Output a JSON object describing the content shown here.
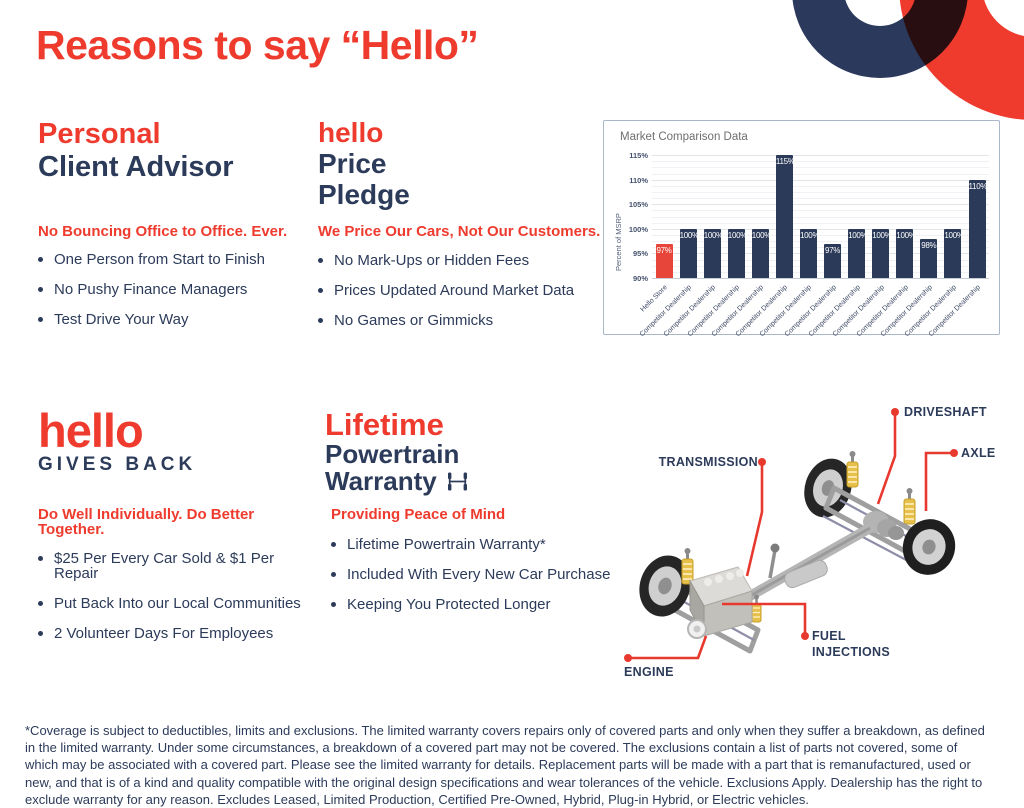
{
  "page": {
    "title": "Reasons to say “Hello”"
  },
  "colors": {
    "red": "#ee3b2e",
    "navy": "#2c3b5a",
    "chart_border": "#a9b7c9",
    "chart_title_gray": "#6f6f6f"
  },
  "sections": {
    "advisor": {
      "heading_line1": "Personal",
      "heading_line2": "Client Advisor",
      "subhead": "No Bouncing Office to Office. Ever.",
      "bullets": [
        "One Person from Start to Finish",
        "No Pushy Finance Managers",
        "Test Drive Your Way"
      ]
    },
    "price": {
      "heading_line1": "hello",
      "heading_line2": "Price",
      "heading_line3": "Pledge",
      "subhead": "We Price Our Cars, Not Our Customers.",
      "bullets": [
        "No Mark-Ups or Hidden Fees",
        "Prices Updated Around Market Data",
        "No Games or Gimmicks"
      ]
    },
    "gives_back": {
      "logo": "hello",
      "heading": "GIVES BACK",
      "subhead": "Do Well Individually. Do Better Together.",
      "bullets": [
        "$25 Per Every Car Sold & $1 Per Repair",
        "Put Back Into our Local Communities",
        "2 Volunteer Days For Employees"
      ]
    },
    "warranty": {
      "heading_line1": "Lifetime",
      "heading_line2": "Powertrain",
      "heading_line3": "Warranty",
      "subhead": "Providing Peace of Mind",
      "bullets": [
        "Lifetime Powertrain Warranty*",
        "Included With Every New Car Purchase",
        "Keeping You Protected Longer"
      ]
    }
  },
  "chart_data": {
    "type": "bar",
    "title": "Market Comparison Data",
    "ylabel": "Percent of MSRP",
    "xlabel": "",
    "categories": [
      "Hello Store",
      "Competitor Dealership",
      "Competitor Dealership",
      "Competitor Dealership",
      "Competitor Dealership",
      "Competitor Dealership",
      "Competitor Dealership",
      "Competitor Dealership",
      "Competitor Dealership",
      "Competitor Dealership",
      "Competitor Dealership",
      "Competitor Dealership",
      "Competitor Dealership",
      "Competitor Dealership"
    ],
    "values": [
      97,
      100,
      100,
      100,
      100,
      115,
      100,
      97,
      100,
      100,
      100,
      98,
      100,
      110
    ],
    "bar_labels": [
      "97%",
      "100%",
      "100%",
      "100%",
      "100%",
      "115%",
      "100%",
      "97%",
      "100%",
      "100%",
      "100%",
      "98%",
      "100%",
      "110%"
    ],
    "ylim": [
      90,
      115
    ],
    "yticks": [
      90,
      95,
      100,
      105,
      110,
      115
    ],
    "ytick_labels": [
      "90%",
      "95%",
      "100%",
      "105%",
      "110%",
      "115%"
    ],
    "grid": true,
    "legend": "none",
    "highlight_index": 0,
    "highlight_color": "#e8453a",
    "bar_color": "#2b3a58"
  },
  "diagram": {
    "transmission": "TRANSMISSION",
    "driveshaft": "DRIVESHAFT",
    "axle": "AXLE",
    "fuel_line1": "FUEL",
    "fuel_line2": "INJECTIONS",
    "engine": "ENGINE"
  },
  "footer": {
    "disclaimer": "*Coverage is subject to deductibles, limits and exclusions. The limited warranty covers repairs only of covered parts and only when they suffer a breakdown, as defined in the limited warranty. Under some circumstances, a breakdown of a covered part may not be covered. The exclusions contain a list of parts not covered, some of which may be associated with a covered part. Please see the limited warranty for details. Replacement parts will be made with a part that is remanufactured, used or new, and that is of a kind and quality compatible with the original design specifications and wear tolerances of the vehicle. Exclusions Apply. Dealership has the right to exclude warranty for any reason. Excludes Leased, Limited Production, Certified Pre-Owned, Hybrid, Plug-in Hybrid, or Electric vehicles."
  }
}
